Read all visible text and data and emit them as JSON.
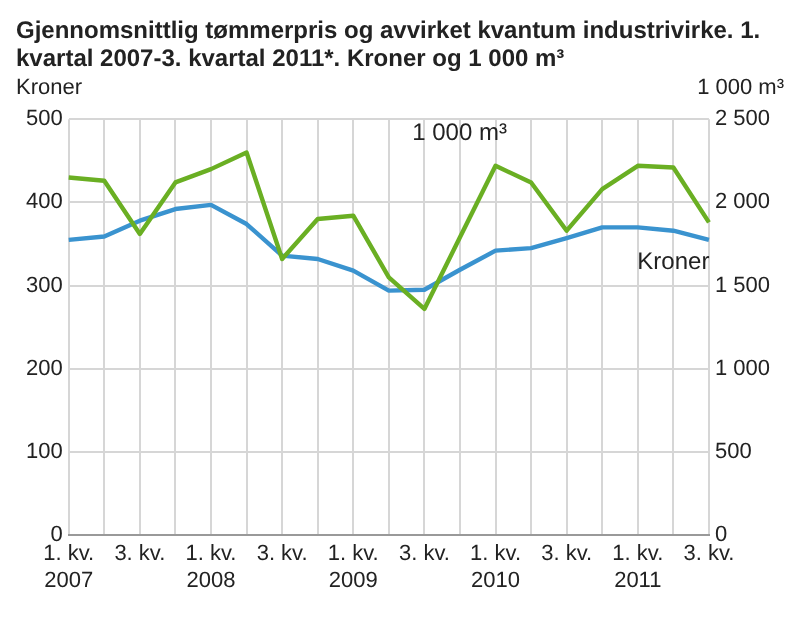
{
  "chart_data": {
    "type": "line",
    "title": "Gjennomsnittlig tømmerpris og avvirket kvantum industrivirke. 1. kvartal 2007-3. kvartal 2011*. Kroner og 1 000 m³",
    "ylabel": "Kroner",
    "y2label": "1 000 m³",
    "categories": [
      "1. kv. 2007",
      null,
      "3. kv.",
      null,
      "1. kv. 2008",
      null,
      "3. kv.",
      null,
      "1. kv. 2009",
      null,
      "3. kv.",
      null,
      "1. kv. 2010",
      null,
      "3. kv.",
      null,
      "1. kv. 2011",
      null,
      "3. kv."
    ],
    "series": [
      {
        "name": "1 000 m³",
        "color": "#6aaf23",
        "axis": "y2",
        "values": [
          2150,
          2130,
          1810,
          2120,
          2200,
          2300,
          1660,
          1900,
          1920,
          1550,
          1360,
          1790,
          2220,
          2120,
          1830,
          2080,
          2220,
          2210,
          1880
        ]
      },
      {
        "name": "Kroner",
        "color": "#3a93cf",
        "values": [
          355,
          359,
          378,
          392,
          397,
          374,
          336,
          332,
          318,
          294,
          295,
          319,
          342,
          345,
          357,
          370,
          370,
          366,
          355
        ]
      }
    ],
    "ylim": [
      0,
      500
    ],
    "yticks": [
      0,
      100,
      200,
      300,
      400,
      500
    ],
    "y2lim": [
      0,
      2500
    ],
    "y2ticks": [
      0,
      500,
      {
        "value": 1000,
        "label": "1 000"
      },
      {
        "value": 1500,
        "label": "1 500"
      },
      {
        "value": 2000,
        "label": "2 000"
      },
      {
        "value": 2500,
        "label": "2 500"
      }
    ],
    "grid": true,
    "legend": false,
    "marker": "none",
    "line_style": "solid"
  }
}
